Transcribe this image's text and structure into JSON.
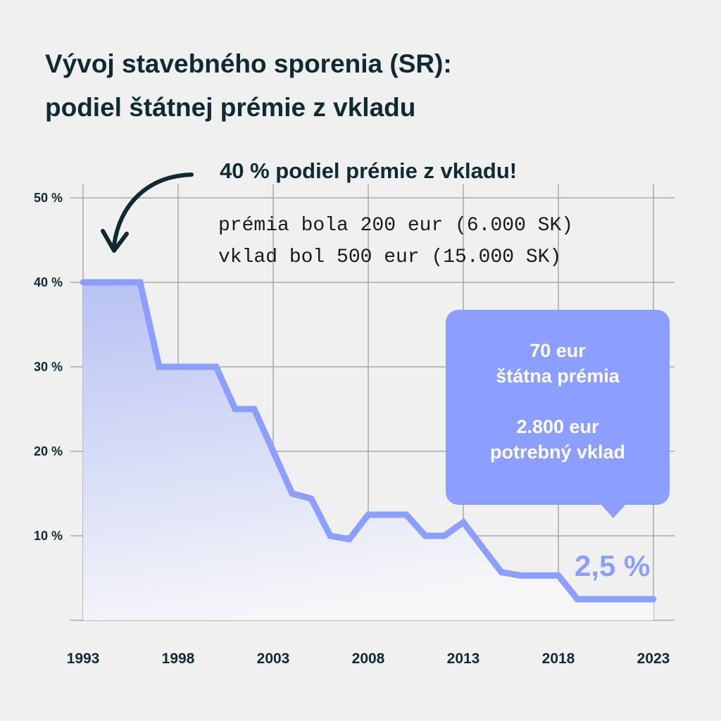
{
  "title": {
    "line1": "Vývoj stavebného sporenia (SR):",
    "line2": "podiel štátnej prémie z vkladu"
  },
  "annotation": {
    "headline": "40 % podiel prémie z vkladu!",
    "line1": "prémia bola 200 eur (6.000 SK)",
    "line2": "vklad bol 500 eur (15.000 SK)"
  },
  "callout": {
    "line1": "70 eur",
    "line2": "štátna prémia",
    "line3": "2.800 eur",
    "line4": "potrebný vklad"
  },
  "end_label": "2,5 %",
  "colors": {
    "accent": "#8c9eff",
    "text": "#0f2a30",
    "background": "#f0f0f0"
  },
  "chart_data": {
    "type": "area",
    "title": "Vývoj stavebného sporenia (SR): podiel štátnej prémie z vkladu",
    "xlabel": "",
    "ylabel": "",
    "x": [
      1993,
      1996,
      1997,
      2000,
      2001,
      2002,
      2004,
      2005,
      2006,
      2007,
      2008,
      2010,
      2011,
      2012,
      2013,
      2015,
      2016,
      2018,
      2019,
      2023
    ],
    "values": [
      40,
      40,
      30,
      30,
      25,
      25,
      15,
      14.4,
      10,
      9.6,
      12.5,
      12.5,
      10,
      10,
      11.6,
      5.7,
      5.3,
      5.3,
      2.5,
      2.5
    ],
    "xlim": [
      1993,
      2023
    ],
    "ylim": [
      0,
      50
    ],
    "x_ticks": [
      "1993",
      "1998",
      "2003",
      "2008",
      "2013",
      "2018",
      "2023"
    ],
    "y_ticks": [
      "10 %",
      "20 %",
      "30 %",
      "40 %",
      "50 %"
    ],
    "grid": true,
    "legend": "none"
  }
}
